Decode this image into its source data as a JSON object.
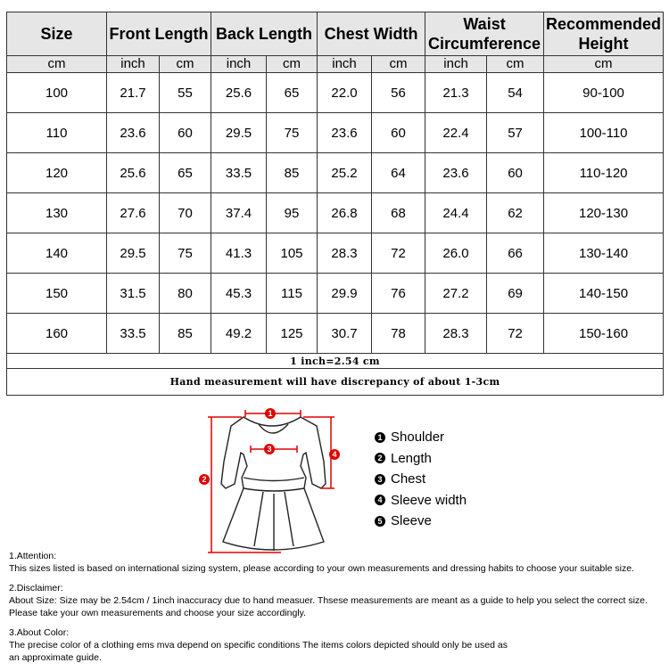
{
  "table": {
    "headers": [
      "Size",
      "Front Length",
      "Back Length",
      "Chest Width",
      "Waist Circumference",
      "Recommended Height"
    ],
    "units": [
      "cm",
      "inch",
      "cm",
      "inch",
      "cm",
      "inch",
      "cm",
      "inch",
      "cm",
      "cm"
    ],
    "rows": [
      [
        "100",
        "21.7",
        "55",
        "25.6",
        "65",
        "22.0",
        "56",
        "21.3",
        "54",
        "90-100"
      ],
      [
        "110",
        "23.6",
        "60",
        "29.5",
        "75",
        "23.6",
        "60",
        "22.4",
        "57",
        "100-110"
      ],
      [
        "120",
        "25.6",
        "65",
        "33.5",
        "85",
        "25.2",
        "64",
        "23.6",
        "60",
        "110-120"
      ],
      [
        "130",
        "27.6",
        "70",
        "37.4",
        "95",
        "26.8",
        "68",
        "24.4",
        "62",
        "120-130"
      ],
      [
        "140",
        "29.5",
        "75",
        "41.3",
        "105",
        "28.3",
        "72",
        "26.0",
        "66",
        "130-140"
      ],
      [
        "150",
        "31.5",
        "80",
        "45.3",
        "115",
        "29.9",
        "76",
        "27.2",
        "69",
        "140-150"
      ],
      [
        "160",
        "33.5",
        "85",
        "49.2",
        "125",
        "30.7",
        "78",
        "28.3",
        "72",
        "150-160"
      ]
    ],
    "conversion_note": "1 inch=2.54 cm",
    "discrepancy_note": "Hand measurement will have discrepancy of about 1-3cm"
  },
  "diagram": {
    "markers": [
      "1",
      "2",
      "3",
      "4"
    ],
    "marker_color": "#e00000"
  },
  "legend": [
    {
      "num": "1",
      "label": "Shoulder"
    },
    {
      "num": "2",
      "label": "Length"
    },
    {
      "num": "3",
      "label": "Chest"
    },
    {
      "num": "4",
      "label": "Sleeve width"
    },
    {
      "num": "5",
      "label": "Sleeve"
    }
  ],
  "notes": [
    {
      "title": "1.Attention:",
      "lines": [
        "This sizes listed is based on international sizing system, please according to your own measurements and dressing habits to choose your suitable size."
      ]
    },
    {
      "title": "2.Disclaimer:",
      "lines": [
        "About Size: Size may be 2.54cm / 1inch inaccuracy due to hand measuer. Thsese measurements are meant as a guide to help you select the correct size.",
        "Please take your own measurements and choose your size accordingly."
      ]
    },
    {
      "title": "3.About Color:",
      "lines": [
        "The precise color of a clothing ems mva depend on specific conditions The items colors depicted should only be used as",
        "an approximate guide."
      ]
    }
  ]
}
